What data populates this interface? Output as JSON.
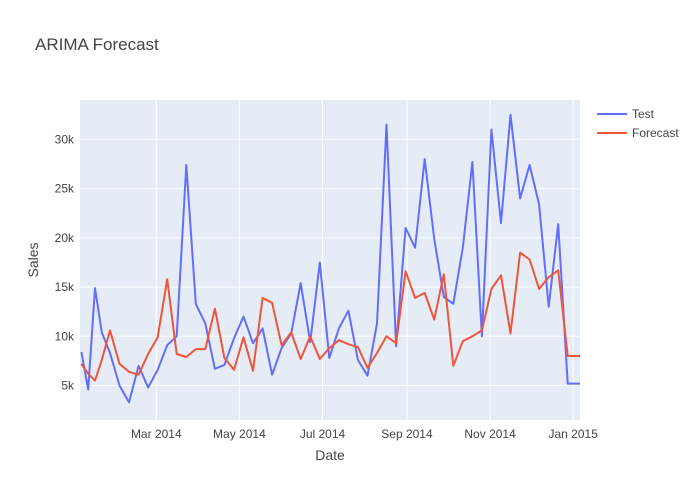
{
  "chart_data": {
    "type": "line",
    "title": "ARIMA Forecast",
    "xlabel": "Date",
    "ylabel": "Sales",
    "x_axis": {
      "type": "date",
      "range": [
        "2014-01-04",
        "2015-01-06"
      ],
      "ticks": [
        {
          "date": "2014-03-01",
          "label": "Mar 2014"
        },
        {
          "date": "2014-05-01",
          "label": "May 2014"
        },
        {
          "date": "2014-07-01",
          "label": "Jul 2014"
        },
        {
          "date": "2014-09-01",
          "label": "Sep 2014"
        },
        {
          "date": "2014-11-01",
          "label": "Nov 2014"
        },
        {
          "date": "2015-01-01",
          "label": "Jan 2015"
        }
      ]
    },
    "y_axis": {
      "range": [
        1500,
        34000
      ],
      "ticks": [
        {
          "value": 5000,
          "label": "5k"
        },
        {
          "value": 10000,
          "label": "10k"
        },
        {
          "value": 15000,
          "label": "15k"
        },
        {
          "value": 20000,
          "label": "20k"
        },
        {
          "value": 25000,
          "label": "25k"
        },
        {
          "value": 30000,
          "label": "30k"
        }
      ]
    },
    "grid": true,
    "legend_position": "top-right",
    "x": [
      "2014-01-05",
      "2014-01-10",
      "2014-01-15",
      "2014-01-20",
      "2014-01-26",
      "2014-02-02",
      "2014-02-09",
      "2014-02-16",
      "2014-02-23",
      "2014-03-02",
      "2014-03-09",
      "2014-03-16",
      "2014-03-23",
      "2014-03-30",
      "2014-04-06",
      "2014-04-13",
      "2014-04-20",
      "2014-04-27",
      "2014-05-04",
      "2014-05-11",
      "2014-05-18",
      "2014-05-25",
      "2014-06-01",
      "2014-06-08",
      "2014-06-15",
      "2014-06-22",
      "2014-06-29",
      "2014-07-06",
      "2014-07-13",
      "2014-07-20",
      "2014-07-27",
      "2014-08-03",
      "2014-08-10",
      "2014-08-17",
      "2014-08-24",
      "2014-08-31",
      "2014-09-07",
      "2014-09-14",
      "2014-09-21",
      "2014-09-28",
      "2014-10-05",
      "2014-10-12",
      "2014-10-19",
      "2014-10-26",
      "2014-11-02",
      "2014-11-09",
      "2014-11-16",
      "2014-11-23",
      "2014-11-30",
      "2014-12-07",
      "2014-12-14",
      "2014-12-21",
      "2014-12-28",
      "2015-01-02",
      "2015-01-06"
    ],
    "series": [
      {
        "name": "Test",
        "color": "#636efa",
        "values": [
          8400,
          4600,
          14900,
          10400,
          8300,
          5000,
          3300,
          7000,
          4800,
          6600,
          9100,
          10000,
          27400,
          13300,
          11300,
          6700,
          7100,
          9800,
          12000,
          9300,
          10800,
          6100,
          8800,
          10300,
          15400,
          9400,
          17500,
          7800,
          10800,
          12600,
          7600,
          6000,
          11300,
          31500,
          9000,
          21000,
          19000,
          28000,
          19900,
          14000,
          13300,
          19000,
          27700,
          10000,
          31000,
          21500,
          32500,
          24000,
          27400,
          23400,
          13000,
          21400,
          5200,
          5200,
          5200
        ]
      },
      {
        "name": "Forecast",
        "color": "#ef553b",
        "values": [
          7200,
          6200,
          5500,
          7600,
          10600,
          7200,
          6400,
          6100,
          8200,
          9900,
          15800,
          8200,
          7900,
          8700,
          8700,
          12800,
          7800,
          6600,
          9900,
          6500,
          13900,
          13400,
          9100,
          10400,
          7700,
          10000,
          7700,
          8800,
          9600,
          9200,
          8900,
          6800,
          8300,
          10000,
          9300,
          16600,
          13900,
          14400,
          11700,
          16300,
          7000,
          9500,
          10000,
          10600,
          14800,
          16200,
          10300,
          18500,
          17800,
          14800,
          16000,
          16700,
          8000,
          8000,
          8000
        ]
      }
    ]
  }
}
